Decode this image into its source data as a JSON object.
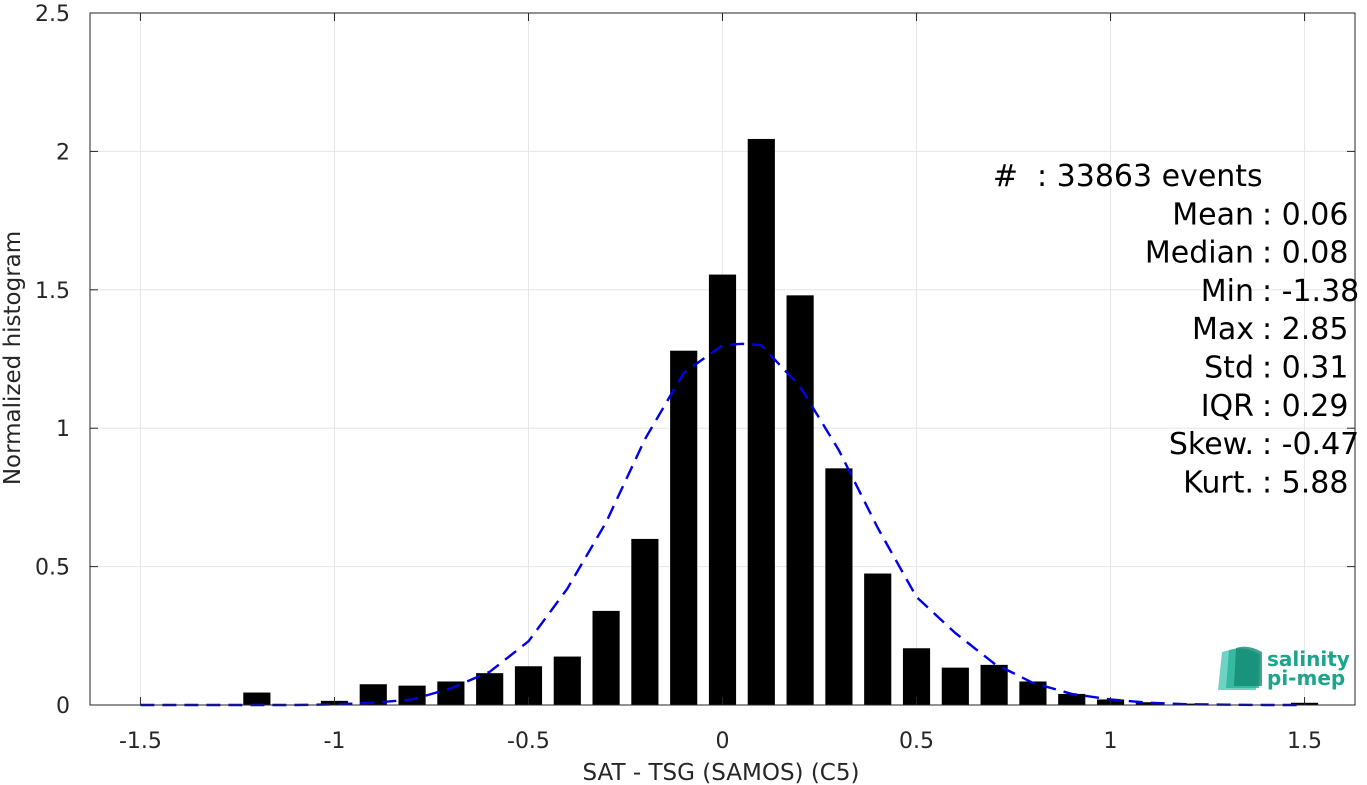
{
  "chart_data": {
    "type": "bar",
    "xlabel": "SAT - TSG (SAMOS) (C5)",
    "ylabel": "Normalized histogram",
    "xlim": [
      -1.63,
      1.63
    ],
    "ylim": [
      0,
      2.5
    ],
    "grid": true,
    "x_ticks": [
      -1.5,
      -1,
      -0.5,
      0,
      0.5,
      1,
      1.5
    ],
    "x_tick_labels": [
      "-1.5",
      "-1",
      "-0.5",
      "0",
      "0.5",
      "1",
      "1.5"
    ],
    "y_ticks": [
      0,
      0.5,
      1,
      1.5,
      2,
      2.5
    ],
    "y_tick_labels": [
      "0",
      "0.5",
      "1",
      "1.5",
      "2",
      "2.5"
    ],
    "bar_width": 0.07,
    "bars": {
      "x": [
        -1.5,
        -1.4,
        -1.3,
        -1.2,
        -1.1,
        -1.0,
        -0.9,
        -0.8,
        -0.7,
        -0.6,
        -0.5,
        -0.4,
        -0.3,
        -0.2,
        -0.1,
        0.0,
        0.1,
        0.2,
        0.3,
        0.4,
        0.5,
        0.6,
        0.7,
        0.8,
        0.9,
        1.0,
        1.1,
        1.2,
        1.3,
        1.4,
        1.5
      ],
      "values": [
        0.0,
        0.0,
        0.0,
        0.045,
        0.0,
        0.015,
        0.075,
        0.07,
        0.085,
        0.115,
        0.14,
        0.175,
        0.34,
        0.6,
        1.28,
        1.555,
        2.045,
        1.48,
        0.855,
        0.475,
        0.205,
        0.135,
        0.145,
        0.085,
        0.04,
        0.02,
        0.01,
        0.005,
        0.0,
        0.0,
        0.008
      ]
    },
    "fit_curve": {
      "style": "dashed",
      "color": "#0000e6",
      "x": [
        -1.5,
        -1.4,
        -1.3,
        -1.2,
        -1.1,
        -1.0,
        -0.9,
        -0.8,
        -0.7,
        -0.6,
        -0.5,
        -0.4,
        -0.3,
        -0.2,
        -0.1,
        0.0,
        0.05,
        0.1,
        0.2,
        0.3,
        0.4,
        0.5,
        0.6,
        0.7,
        0.8,
        0.9,
        1.0,
        1.1,
        1.2,
        1.3,
        1.4,
        1.5
      ],
      "y": [
        0.0,
        0.0,
        0.0,
        0.0,
        0.0,
        0.002,
        0.008,
        0.02,
        0.06,
        0.12,
        0.23,
        0.42,
        0.66,
        0.96,
        1.2,
        1.3,
        1.305,
        1.3,
        1.15,
        0.92,
        0.64,
        0.39,
        0.26,
        0.15,
        0.08,
        0.04,
        0.02,
        0.008,
        0.003,
        0.001,
        0.0,
        0.0
      ]
    },
    "annotations": [
      {
        "label": "#",
        "value": ": 33863 events"
      },
      {
        "label": "Mean",
        "value": ": 0.06"
      },
      {
        "label": "Median",
        "value": ": 0.08"
      },
      {
        "label": "Min",
        "value": ": -1.38"
      },
      {
        "label": "Max",
        "value": ": 2.85"
      },
      {
        "label": "Std",
        "value": ": 0.31"
      },
      {
        "label": "IQR",
        "value": ": 0.29"
      },
      {
        "label": "Skew.",
        "value": ": -0.47"
      },
      {
        "label": "Kurt.",
        "value": ": 5.88"
      }
    ]
  },
  "logo": {
    "line1": "salinity",
    "line2": "pi-mep",
    "color": "#1aa58c"
  }
}
